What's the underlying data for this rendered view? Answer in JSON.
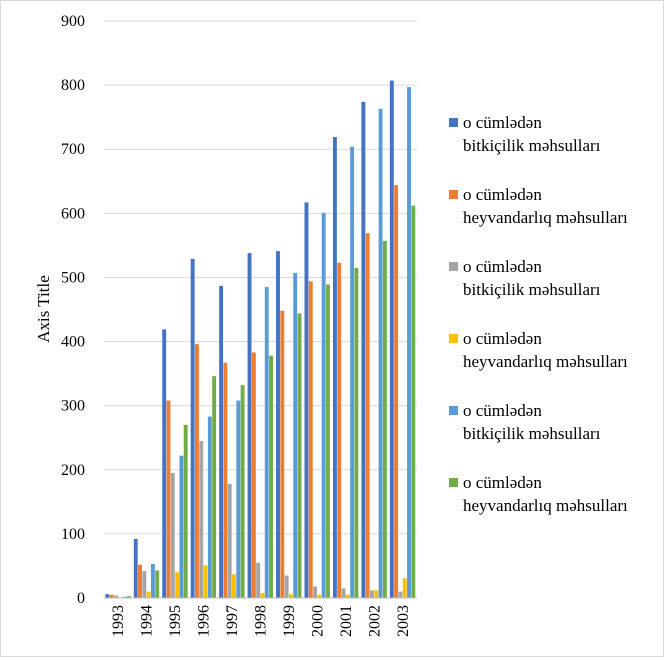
{
  "chart_data": {
    "type": "bar",
    "categories": [
      "1993",
      "1994",
      "1995",
      "1996",
      "1997",
      "1998",
      "1999",
      "2000",
      "2001",
      "2002",
      "2003"
    ],
    "ylabel": "Axis Title",
    "xlabel": "",
    "title": "",
    "ylim": [
      0,
      900
    ],
    "yticks": [
      0,
      100,
      200,
      300,
      400,
      500,
      600,
      700,
      800,
      900
    ],
    "grid": true,
    "legend_position": "right",
    "series": [
      {
        "name_lines": [
          "o cümlədən",
          "bitkiçilik məhsulları"
        ],
        "color": "#4472C4",
        "values": [
          6,
          92,
          419,
          529,
          487,
          538,
          541,
          617,
          719,
          774,
          807
        ]
      },
      {
        "name_lines": [
          "o cümlədən",
          "heyvandarlıq məhsulları"
        ],
        "color": "#ED7D31",
        "values": [
          5,
          52,
          308,
          396,
          367,
          383,
          448,
          494,
          523,
          569,
          644
        ]
      },
      {
        "name_lines": [
          "o cümlədən",
          "bitkiçilik məhsulları"
        ],
        "color": "#A5A5A5",
        "values": [
          4,
          42,
          195,
          245,
          178,
          55,
          35,
          18,
          15,
          12,
          10
        ]
      },
      {
        "name_lines": [
          "o cümlədən",
          "heyvandarlıq məhsulları"
        ],
        "color": "#FFC000",
        "values": [
          1,
          10,
          40,
          51,
          37,
          8,
          6,
          5,
          5,
          12,
          31
        ]
      },
      {
        "name_lines": [
          "o cümlədən",
          "bitkiçilik məhsulları"
        ],
        "color": "#5B9BD5",
        "values": [
          2,
          53,
          222,
          283,
          308,
          485,
          507,
          601,
          704,
          763,
          797
        ]
      },
      {
        "name_lines": [
          "o cümlədən",
          "heyvandarlıq məhsulları"
        ],
        "color": "#70AD47",
        "values": [
          3,
          43,
          270,
          346,
          332,
          378,
          444,
          489,
          515,
          557,
          612
        ]
      }
    ]
  }
}
